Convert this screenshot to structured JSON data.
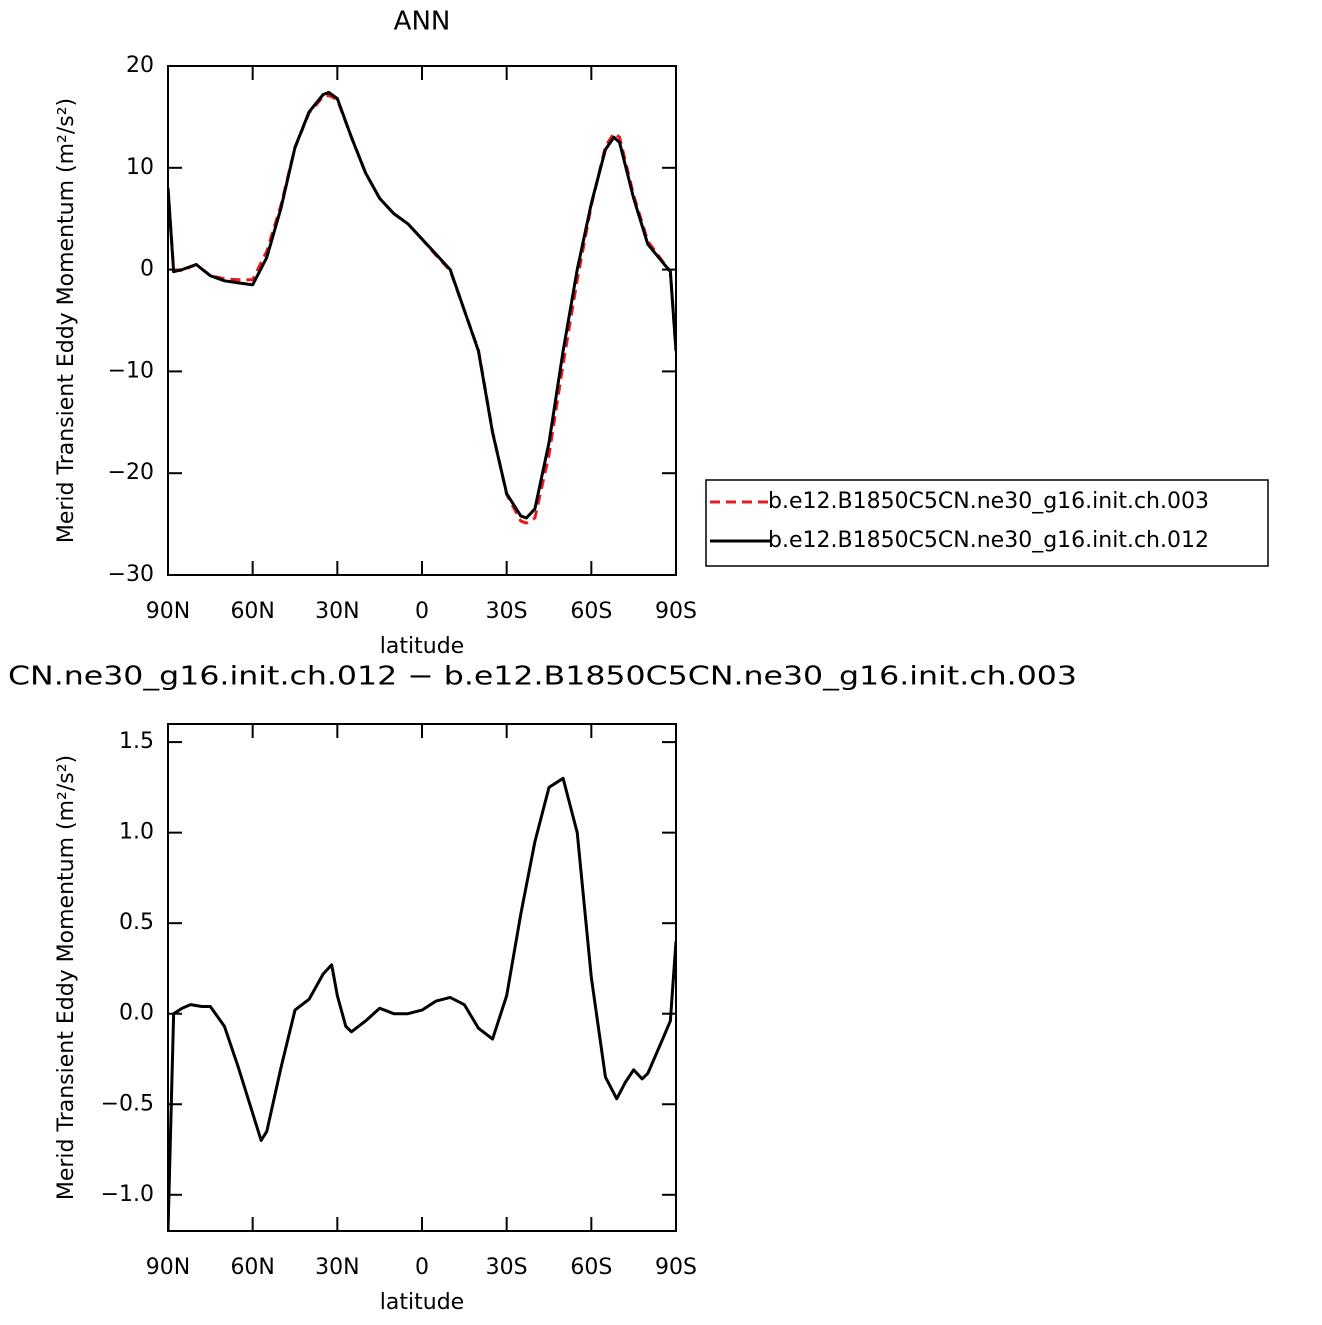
{
  "chart_data": [
    {
      "type": "line",
      "title": "ANN",
      "xlabel": "latitude",
      "ylabel": "Merid Transient Eddy Momentum (m²/s²)",
      "x": [
        90,
        88,
        85,
        80,
        75,
        70,
        65,
        60,
        55,
        50,
        45,
        40,
        35,
        33,
        30,
        25,
        20,
        15,
        10,
        5,
        0,
        -5,
        -10,
        -15,
        -20,
        -25,
        -30,
        -35,
        -37,
        -40,
        -45,
        -50,
        -55,
        -60,
        -65,
        -68,
        -70,
        -75,
        -80,
        -85,
        -88,
        -90
      ],
      "series": [
        {
          "name": "b.e12.B1850C5CN.ne30_g16.init.ch.003",
          "color": "#e41a1c",
          "dashed": true,
          "values": [
            8,
            0,
            -0.1,
            0.5,
            -0.6,
            -0.9,
            -1.0,
            -1.0,
            1.8,
            6.3,
            12,
            15.4,
            17,
            17.1,
            16.7,
            13,
            9.5,
            7,
            5.5,
            4.5,
            3,
            1.4,
            -0.1,
            -4,
            -7.9,
            -15.9,
            -22.1,
            -24.7,
            -24.9,
            -24.4,
            -18.2,
            -9.3,
            -1,
            6.3,
            12.1,
            13.4,
            13,
            7.3,
            2.8,
            0.9,
            -0.2,
            -8
          ]
        },
        {
          "name": "b.e12.B1850C5CN.ne30_g16.init.ch.012",
          "color": "#000000",
          "dashed": false,
          "values": [
            8,
            -0.2,
            0,
            0.5,
            -0.6,
            -1.1,
            -1.3,
            -1.5,
            1.2,
            6,
            12,
            15.5,
            17.2,
            17.4,
            16.8,
            13,
            9.5,
            7,
            5.5,
            4.5,
            3,
            1.5,
            0,
            -4,
            -8,
            -16,
            -22,
            -24.2,
            -24.4,
            -23.5,
            -17,
            -8,
            0,
            6.5,
            11.8,
            13,
            12.5,
            7,
            2.5,
            0.8,
            -0.2,
            -8
          ]
        }
      ],
      "xlim": [
        90,
        -90
      ],
      "xticks": [
        {
          "value": 90,
          "label": "90N"
        },
        {
          "value": 60,
          "label": "60N"
        },
        {
          "value": 30,
          "label": "30N"
        },
        0,
        {
          "value": -30,
          "label": "30S"
        },
        {
          "value": -60,
          "label": "60S"
        },
        {
          "value": -90,
          "label": "90S"
        }
      ],
      "ylim": [
        -30,
        20
      ],
      "yticks": [
        {
          "value": -30,
          "label": "−30"
        },
        {
          "value": -20,
          "label": "−20"
        },
        {
          "value": -10,
          "label": "−10"
        },
        0,
        10,
        20
      ],
      "legend": "right"
    },
    {
      "type": "line",
      "title": "CN.ne30_g16.init.ch.012 − b.e12.B1850C5CN.ne30_g16.init.ch.003",
      "xlabel": "latitude",
      "ylabel": "Merid Transient Eddy Momentum (m²/s²)",
      "x": [
        90,
        88,
        85,
        82,
        78,
        75,
        70,
        65,
        60,
        57,
        55,
        50,
        45,
        40,
        35,
        32,
        30,
        27,
        25,
        20,
        15,
        10,
        5,
        0,
        -5,
        -10,
        -15,
        -20,
        -25,
        -30,
        -35,
        -40,
        -45,
        -50,
        -55,
        -60,
        -65,
        -69,
        -72,
        -75,
        -78,
        -80,
        -85,
        -88,
        -90
      ],
      "series": [
        {
          "color": "#000000",
          "dashed": false,
          "values": [
            -1.2,
            0,
            0.03,
            0.05,
            0.04,
            0.04,
            -0.07,
            -0.3,
            -0.55,
            -0.7,
            -0.65,
            -0.3,
            0.02,
            0.08,
            0.22,
            0.27,
            0.1,
            -0.07,
            -0.1,
            -0.04,
            0.03,
            0,
            0,
            0.02,
            0.07,
            0.09,
            0.05,
            -0.08,
            -0.14,
            0.1,
            0.55,
            0.95,
            1.25,
            1.3,
            1,
            0.2,
            -0.35,
            -0.47,
            -0.38,
            -0.31,
            -0.36,
            -0.33,
            -0.15,
            -0.04,
            0.4
          ]
        }
      ],
      "xlim": [
        90,
        -90
      ],
      "xticks": [
        {
          "value": 90,
          "label": "90N"
        },
        {
          "value": 60,
          "label": "60N"
        },
        {
          "value": 30,
          "label": "30N"
        },
        0,
        {
          "value": -30,
          "label": "30S"
        },
        {
          "value": -60,
          "label": "60S"
        },
        {
          "value": -90,
          "label": "90S"
        }
      ],
      "ylim": [
        -1.2,
        1.6
      ],
      "yticks": [
        {
          "value": -1,
          "label": "−1.0"
        },
        {
          "value": -0.5,
          "label": "−0.5"
        },
        {
          "value": 0,
          "label": "0.0"
        },
        {
          "value": 0.5,
          "label": "0.5"
        },
        {
          "value": 1,
          "label": "1.0"
        },
        {
          "value": 1.5,
          "label": "1.5"
        }
      ]
    }
  ]
}
